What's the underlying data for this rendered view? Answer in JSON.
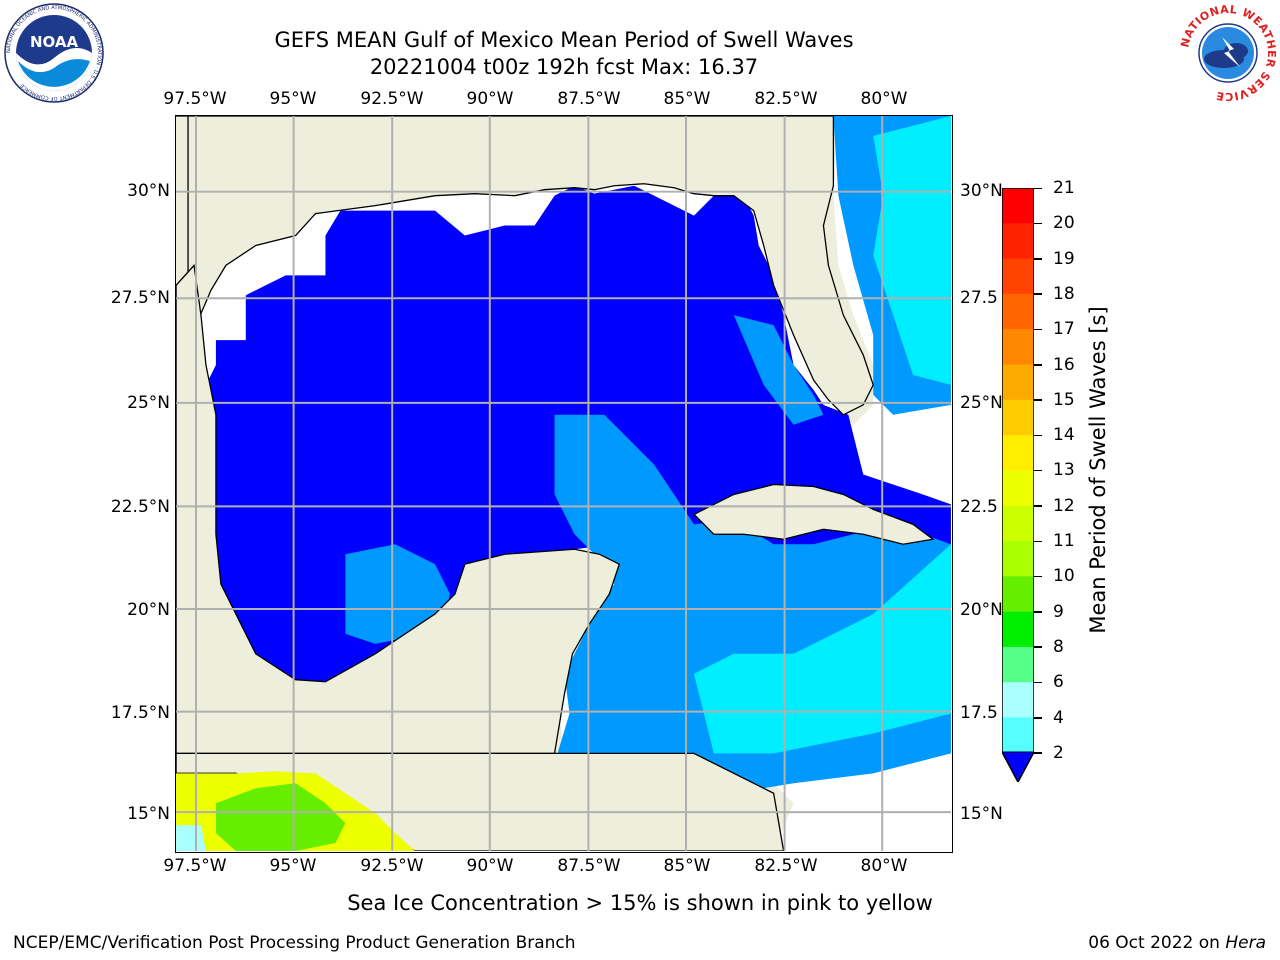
{
  "title": {
    "line1": "GEFS MEAN Gulf of Mexico Mean Period of Swell Waves",
    "line2": "20221004 t00z 192h fcst   Max: 16.37"
  },
  "map": {
    "lon_labels": [
      "97.5°W",
      "95°W",
      "92.5°W",
      "90°W",
      "87.5°W",
      "85°W",
      "82.5°W",
      "80°W"
    ],
    "lat_labels": [
      "30°N",
      "27.5°N",
      "25°N",
      "22.5°N",
      "20°N",
      "17.5°N",
      "15°N"
    ],
    "right_lat_labels": [
      "30°N",
      "27.5",
      "25°N",
      "22.5",
      "20°N",
      "17.5",
      "15°N"
    ],
    "colors": {
      "land": "#eeeedc",
      "nodata": "#ffffff",
      "grid": "#b0b0b0",
      "coast": "#000000"
    }
  },
  "colorbar": {
    "label": "Mean Period of Swell Waves [s]",
    "ticks": [
      "21",
      "20",
      "19",
      "18",
      "17",
      "16",
      "15",
      "14",
      "13",
      "12",
      "11",
      "10",
      "9",
      "8",
      "6",
      "4",
      "2"
    ],
    "colors": [
      "#ff0000",
      "#ff2200",
      "#ff4400",
      "#ff6600",
      "#ff8800",
      "#ffaa00",
      "#ffcc00",
      "#ffee00",
      "#eeff00",
      "#ccff00",
      "#aaff00",
      "#66ee00",
      "#00ee00",
      "#55ff88",
      "#aaffff",
      "#55ffff",
      "#00eeff",
      "#0099ff",
      "#0000ff"
    ]
  },
  "note": "Sea Ice Concentration > 15% is shown in pink to yellow",
  "footer": {
    "left": "NCEP/EMC/Verification Post Processing Product Generation Branch",
    "right_date": "06 Oct 2022 on ",
    "right_machine": "Hera"
  },
  "logos": {
    "left": "NOAA",
    "left_ring": "NATIONAL OCEANIC AND ATMOSPHERIC ADMINISTRATION · U.S. DEPARTMENT OF COMMERCE",
    "right_ring": "NATIONAL WEATHER SERVICE"
  }
}
